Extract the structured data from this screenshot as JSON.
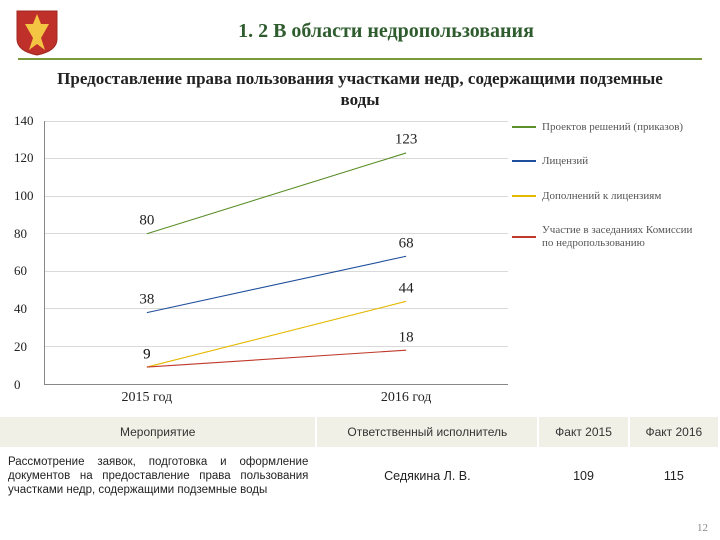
{
  "header": {
    "title": "1. 2 В области недропользования"
  },
  "subtitle": "Предоставление права пользования участками недр, содержащими подземные воды",
  "chart": {
    "type": "line",
    "ylim": [
      0,
      140
    ],
    "ytick_step": 20,
    "categories": [
      "2015 год",
      "2016 год"
    ],
    "series": [
      {
        "name": "Проектов решений (приказов)",
        "color": "#5a8f29",
        "values": [
          80,
          123
        ]
      },
      {
        "name": "Лицензий",
        "color": "#1f4e9c",
        "values": [
          38,
          68
        ]
      },
      {
        "name": "Дополнений к лицензиям",
        "color": "#e6b800",
        "values": [
          9,
          44
        ]
      },
      {
        "name": "Участие в заседаниях Комиссии по недропользованию",
        "color": "#c0392b",
        "values": [
          9,
          18
        ]
      }
    ],
    "label_fontsize": 15,
    "gridline_color": "#d9d9d9",
    "axis_color": "#888888"
  },
  "table": {
    "headers": [
      "Мероприятие",
      "Ответственный исполнитель",
      "Факт 2015",
      "Факт 2016"
    ],
    "row": {
      "desc": "Рассмотрение заявок, подготовка и оформление документов на предоставление права пользования участками недр, содержащими подземные воды",
      "person": "Седякина Л. В.",
      "v2015": "109",
      "v2016": "115"
    }
  },
  "page_number": "12"
}
